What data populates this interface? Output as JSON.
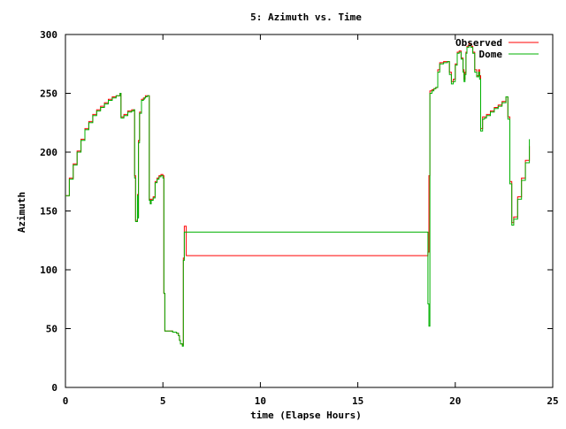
{
  "chart_data": {
    "type": "line",
    "title": "5: Azimuth vs. Time",
    "xlabel": "time (Elapse Hours)",
    "ylabel": "Azimuth",
    "xlim": [
      0,
      25
    ],
    "ylim": [
      0,
      300
    ],
    "xticks": [
      0,
      5,
      10,
      15,
      20,
      25
    ],
    "yticks": [
      0,
      50,
      100,
      150,
      200,
      250,
      300
    ],
    "grid": false,
    "legend_position": "top-right",
    "series": [
      {
        "name": "Observed",
        "color": "#ff0000",
        "x": [
          0.0,
          0.2,
          0.4,
          0.6,
          0.8,
          1.0,
          1.2,
          1.4,
          1.6,
          1.8,
          2.0,
          2.2,
          2.4,
          2.6,
          2.8,
          2.85,
          3.0,
          3.2,
          3.4,
          3.5,
          3.55,
          3.6,
          3.7,
          3.72,
          3.75,
          3.8,
          3.9,
          4.0,
          4.05,
          4.1,
          4.2,
          4.3,
          4.35,
          4.4,
          4.5,
          4.6,
          4.7,
          4.8,
          4.9,
          5.0,
          5.05,
          5.1,
          5.15,
          5.2,
          5.3,
          5.5,
          5.7,
          5.8,
          5.85,
          5.9,
          6.0,
          6.05,
          6.1,
          6.2,
          7.0,
          9.0,
          11.0,
          13.0,
          15.0,
          17.0,
          18.0,
          18.5,
          18.55,
          18.6,
          18.65,
          18.7,
          18.8,
          18.9,
          19.0,
          19.1,
          19.2,
          19.4,
          19.6,
          19.7,
          19.8,
          19.9,
          20.0,
          20.1,
          20.2,
          20.3,
          20.4,
          20.45,
          20.5,
          20.55,
          20.6,
          20.7,
          20.8,
          20.9,
          21.0,
          21.1,
          21.2,
          21.25,
          21.3,
          21.4,
          21.5,
          21.6,
          21.8,
          22.0,
          22.2,
          22.4,
          22.6,
          22.7,
          22.8,
          22.9,
          23.0,
          23.2,
          23.4,
          23.6,
          23.8
        ],
        "y": [
          163,
          178,
          190,
          201,
          211,
          220,
          226,
          232,
          236,
          239,
          242,
          245,
          247,
          248,
          250,
          230,
          232,
          235,
          236,
          236,
          180,
          142,
          164,
          145,
          210,
          234,
          245,
          246,
          246,
          248,
          248,
          160,
          157,
          160,
          162,
          175,
          178,
          180,
          181,
          180,
          80,
          48,
          48,
          48,
          48,
          47,
          46,
          44,
          40,
          37,
          36,
          110,
          137,
          112,
          112,
          112,
          112,
          112,
          112,
          112,
          112,
          112,
          112,
          115,
          180,
          252,
          253,
          254,
          255,
          270,
          276,
          277,
          277,
          268,
          260,
          262,
          275,
          285,
          286,
          280,
          270,
          262,
          268,
          285,
          290,
          292,
          290,
          285,
          270,
          265,
          270,
          265,
          220,
          230,
          230,
          232,
          235,
          238,
          240,
          243,
          247,
          230,
          175,
          140,
          145,
          162,
          178,
          193,
          205
        ]
      },
      {
        "name": "Dome",
        "color": "#00b000",
        "x": [
          0.0,
          0.2,
          0.4,
          0.6,
          0.8,
          1.0,
          1.2,
          1.4,
          1.6,
          1.8,
          2.0,
          2.2,
          2.4,
          2.6,
          2.8,
          2.85,
          3.0,
          3.2,
          3.4,
          3.5,
          3.55,
          3.6,
          3.7,
          3.72,
          3.75,
          3.8,
          3.9,
          4.0,
          4.05,
          4.1,
          4.2,
          4.3,
          4.35,
          4.4,
          4.5,
          4.6,
          4.7,
          4.8,
          4.9,
          5.0,
          5.05,
          5.1,
          5.15,
          5.2,
          5.3,
          5.5,
          5.7,
          5.8,
          5.85,
          5.9,
          6.0,
          6.05,
          6.1,
          6.2,
          7.0,
          9.0,
          11.0,
          13.0,
          15.0,
          17.0,
          18.0,
          18.5,
          18.55,
          18.6,
          18.65,
          18.7,
          18.8,
          18.9,
          19.0,
          19.1,
          19.2,
          19.4,
          19.6,
          19.7,
          19.8,
          19.9,
          20.0,
          20.1,
          20.2,
          20.3,
          20.4,
          20.45,
          20.5,
          20.55,
          20.6,
          20.7,
          20.8,
          20.9,
          21.0,
          21.1,
          21.2,
          21.25,
          21.3,
          21.4,
          21.5,
          21.6,
          21.8,
          22.0,
          22.2,
          22.4,
          22.6,
          22.7,
          22.8,
          22.9,
          23.0,
          23.2,
          23.4,
          23.6,
          23.8
        ],
        "y": [
          163,
          177,
          189,
          200,
          210,
          219,
          225,
          231,
          235,
          238,
          241,
          244,
          246,
          248,
          250,
          229,
          231,
          234,
          235,
          236,
          178,
          141,
          163,
          144,
          208,
          233,
          244,
          245,
          246,
          247,
          248,
          159,
          156,
          159,
          161,
          174,
          177,
          179,
          180,
          178,
          80,
          48,
          48,
          48,
          48,
          47,
          46,
          44,
          40,
          37,
          35,
          108,
          132,
          132,
          132,
          132,
          132,
          132,
          132,
          132,
          132,
          132,
          132,
          71,
          52,
          250,
          252,
          254,
          255,
          268,
          275,
          276,
          277,
          266,
          258,
          260,
          274,
          284,
          285,
          279,
          268,
          260,
          266,
          284,
          289,
          291,
          289,
          284,
          268,
          264,
          268,
          262,
          218,
          228,
          229,
          231,
          234,
          237,
          239,
          242,
          247,
          228,
          173,
          138,
          143,
          160,
          176,
          191,
          211
        ]
      }
    ]
  }
}
